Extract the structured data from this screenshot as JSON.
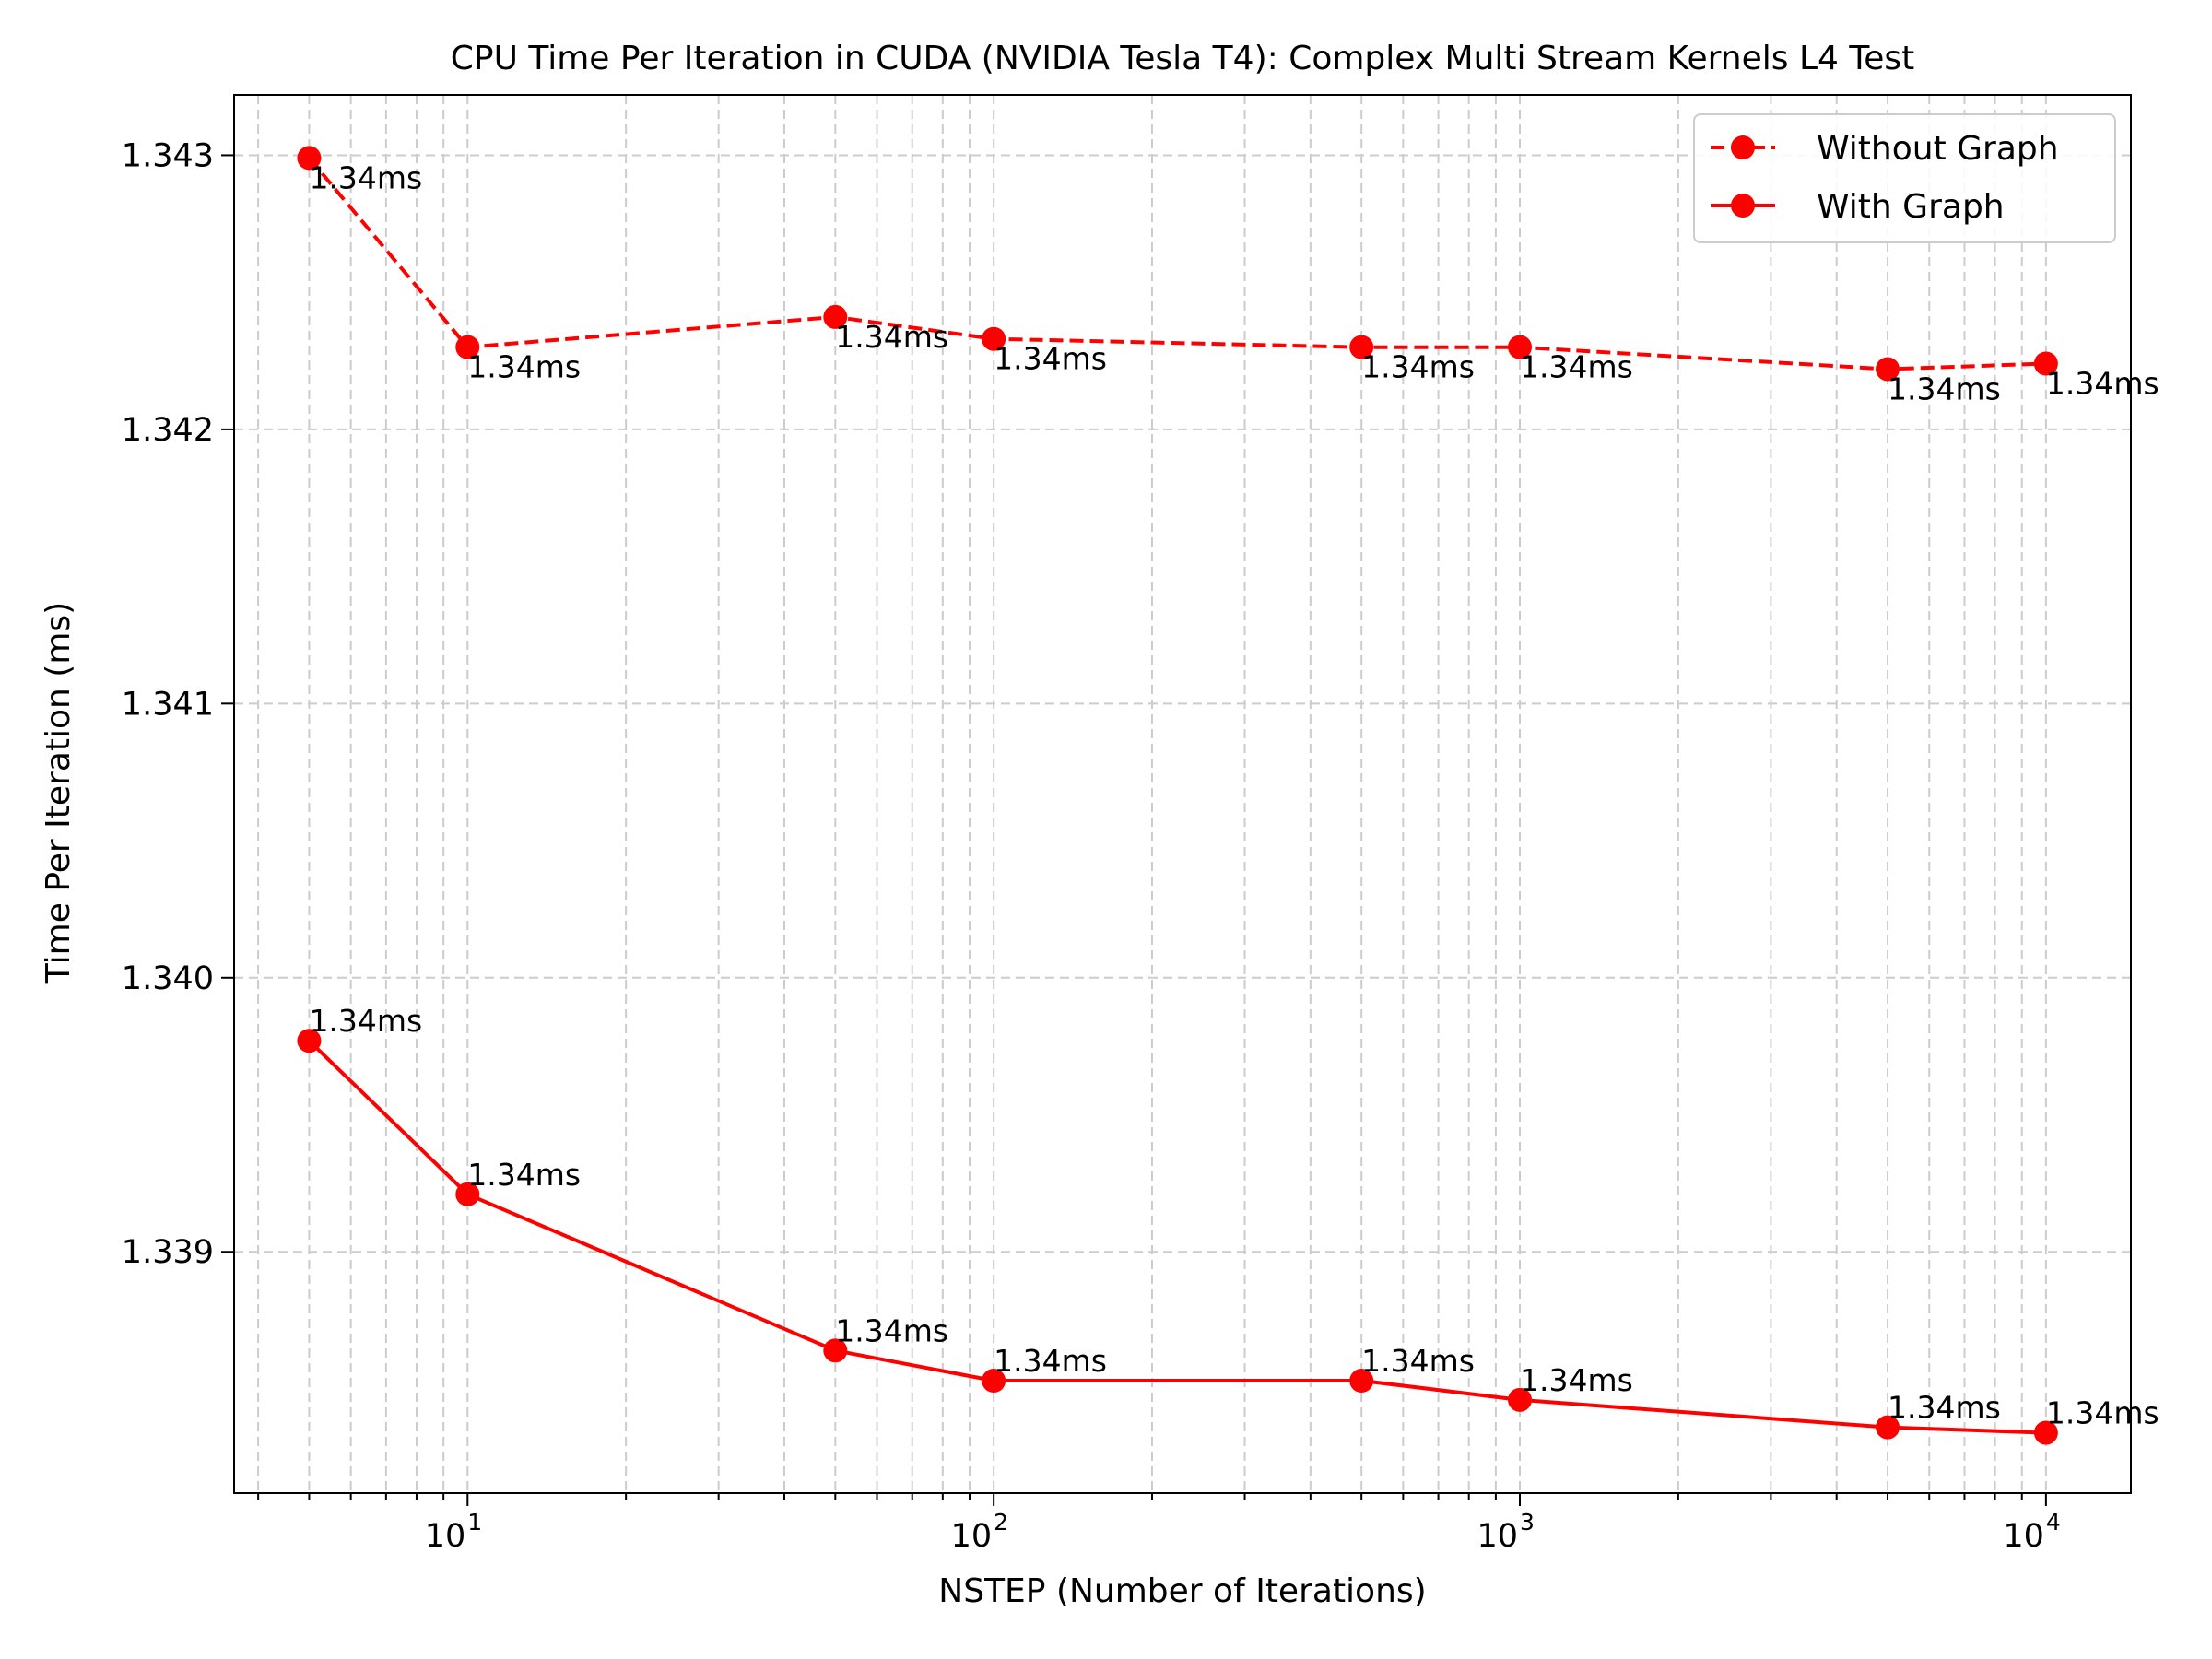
{
  "chart_data": {
    "type": "line",
    "title": "CPU Time Per Iteration in CUDA (NVIDIA Tesla T4): Complex Multi Stream Kernels L4 Test",
    "xlabel": "NSTEP (Number of Iterations)",
    "ylabel": "Time Per Iteration (ms)",
    "xscale": "log",
    "xlim": [
      3.6,
      14500
    ],
    "ylim": [
      1.33812,
      1.34322
    ],
    "x": [
      5,
      10,
      50,
      100,
      500,
      1000,
      5000,
      10000
    ],
    "xticks": [
      {
        "value": 10,
        "base": "10",
        "exp": "1"
      },
      {
        "value": 100,
        "base": "10",
        "exp": "2"
      },
      {
        "value": 1000,
        "base": "10",
        "exp": "3"
      },
      {
        "value": 10000,
        "base": "10",
        "exp": "4"
      }
    ],
    "yticks": [
      {
        "value": 1.339,
        "label": "1.339"
      },
      {
        "value": 1.34,
        "label": "1.340"
      },
      {
        "value": 1.341,
        "label": "1.341"
      },
      {
        "value": 1.342,
        "label": "1.342"
      },
      {
        "value": 1.343,
        "label": "1.343"
      }
    ],
    "grid": true,
    "legend_position": "top-right",
    "series": [
      {
        "name": "Without Graph",
        "style": "dashed",
        "color": "#ff0000",
        "values": [
          1.34299,
          1.3423,
          1.34241,
          1.34233,
          1.3423,
          1.3423,
          1.34222,
          1.34224
        ],
        "labels": [
          "1.34ms",
          "1.34ms",
          "1.34ms",
          "1.34ms",
          "1.34ms",
          "1.34ms",
          "1.34ms",
          "1.34ms"
        ],
        "label_position": "below"
      },
      {
        "name": "With Graph",
        "style": "solid",
        "color": "#ff0000",
        "values": [
          1.33977,
          1.33921,
          1.33864,
          1.33853,
          1.33853,
          1.33846,
          1.33836,
          1.33834
        ],
        "labels": [
          "1.34ms",
          "1.34ms",
          "1.34ms",
          "1.34ms",
          "1.34ms",
          "1.34ms",
          "1.34ms",
          "1.34ms"
        ],
        "label_position": "above"
      }
    ]
  }
}
